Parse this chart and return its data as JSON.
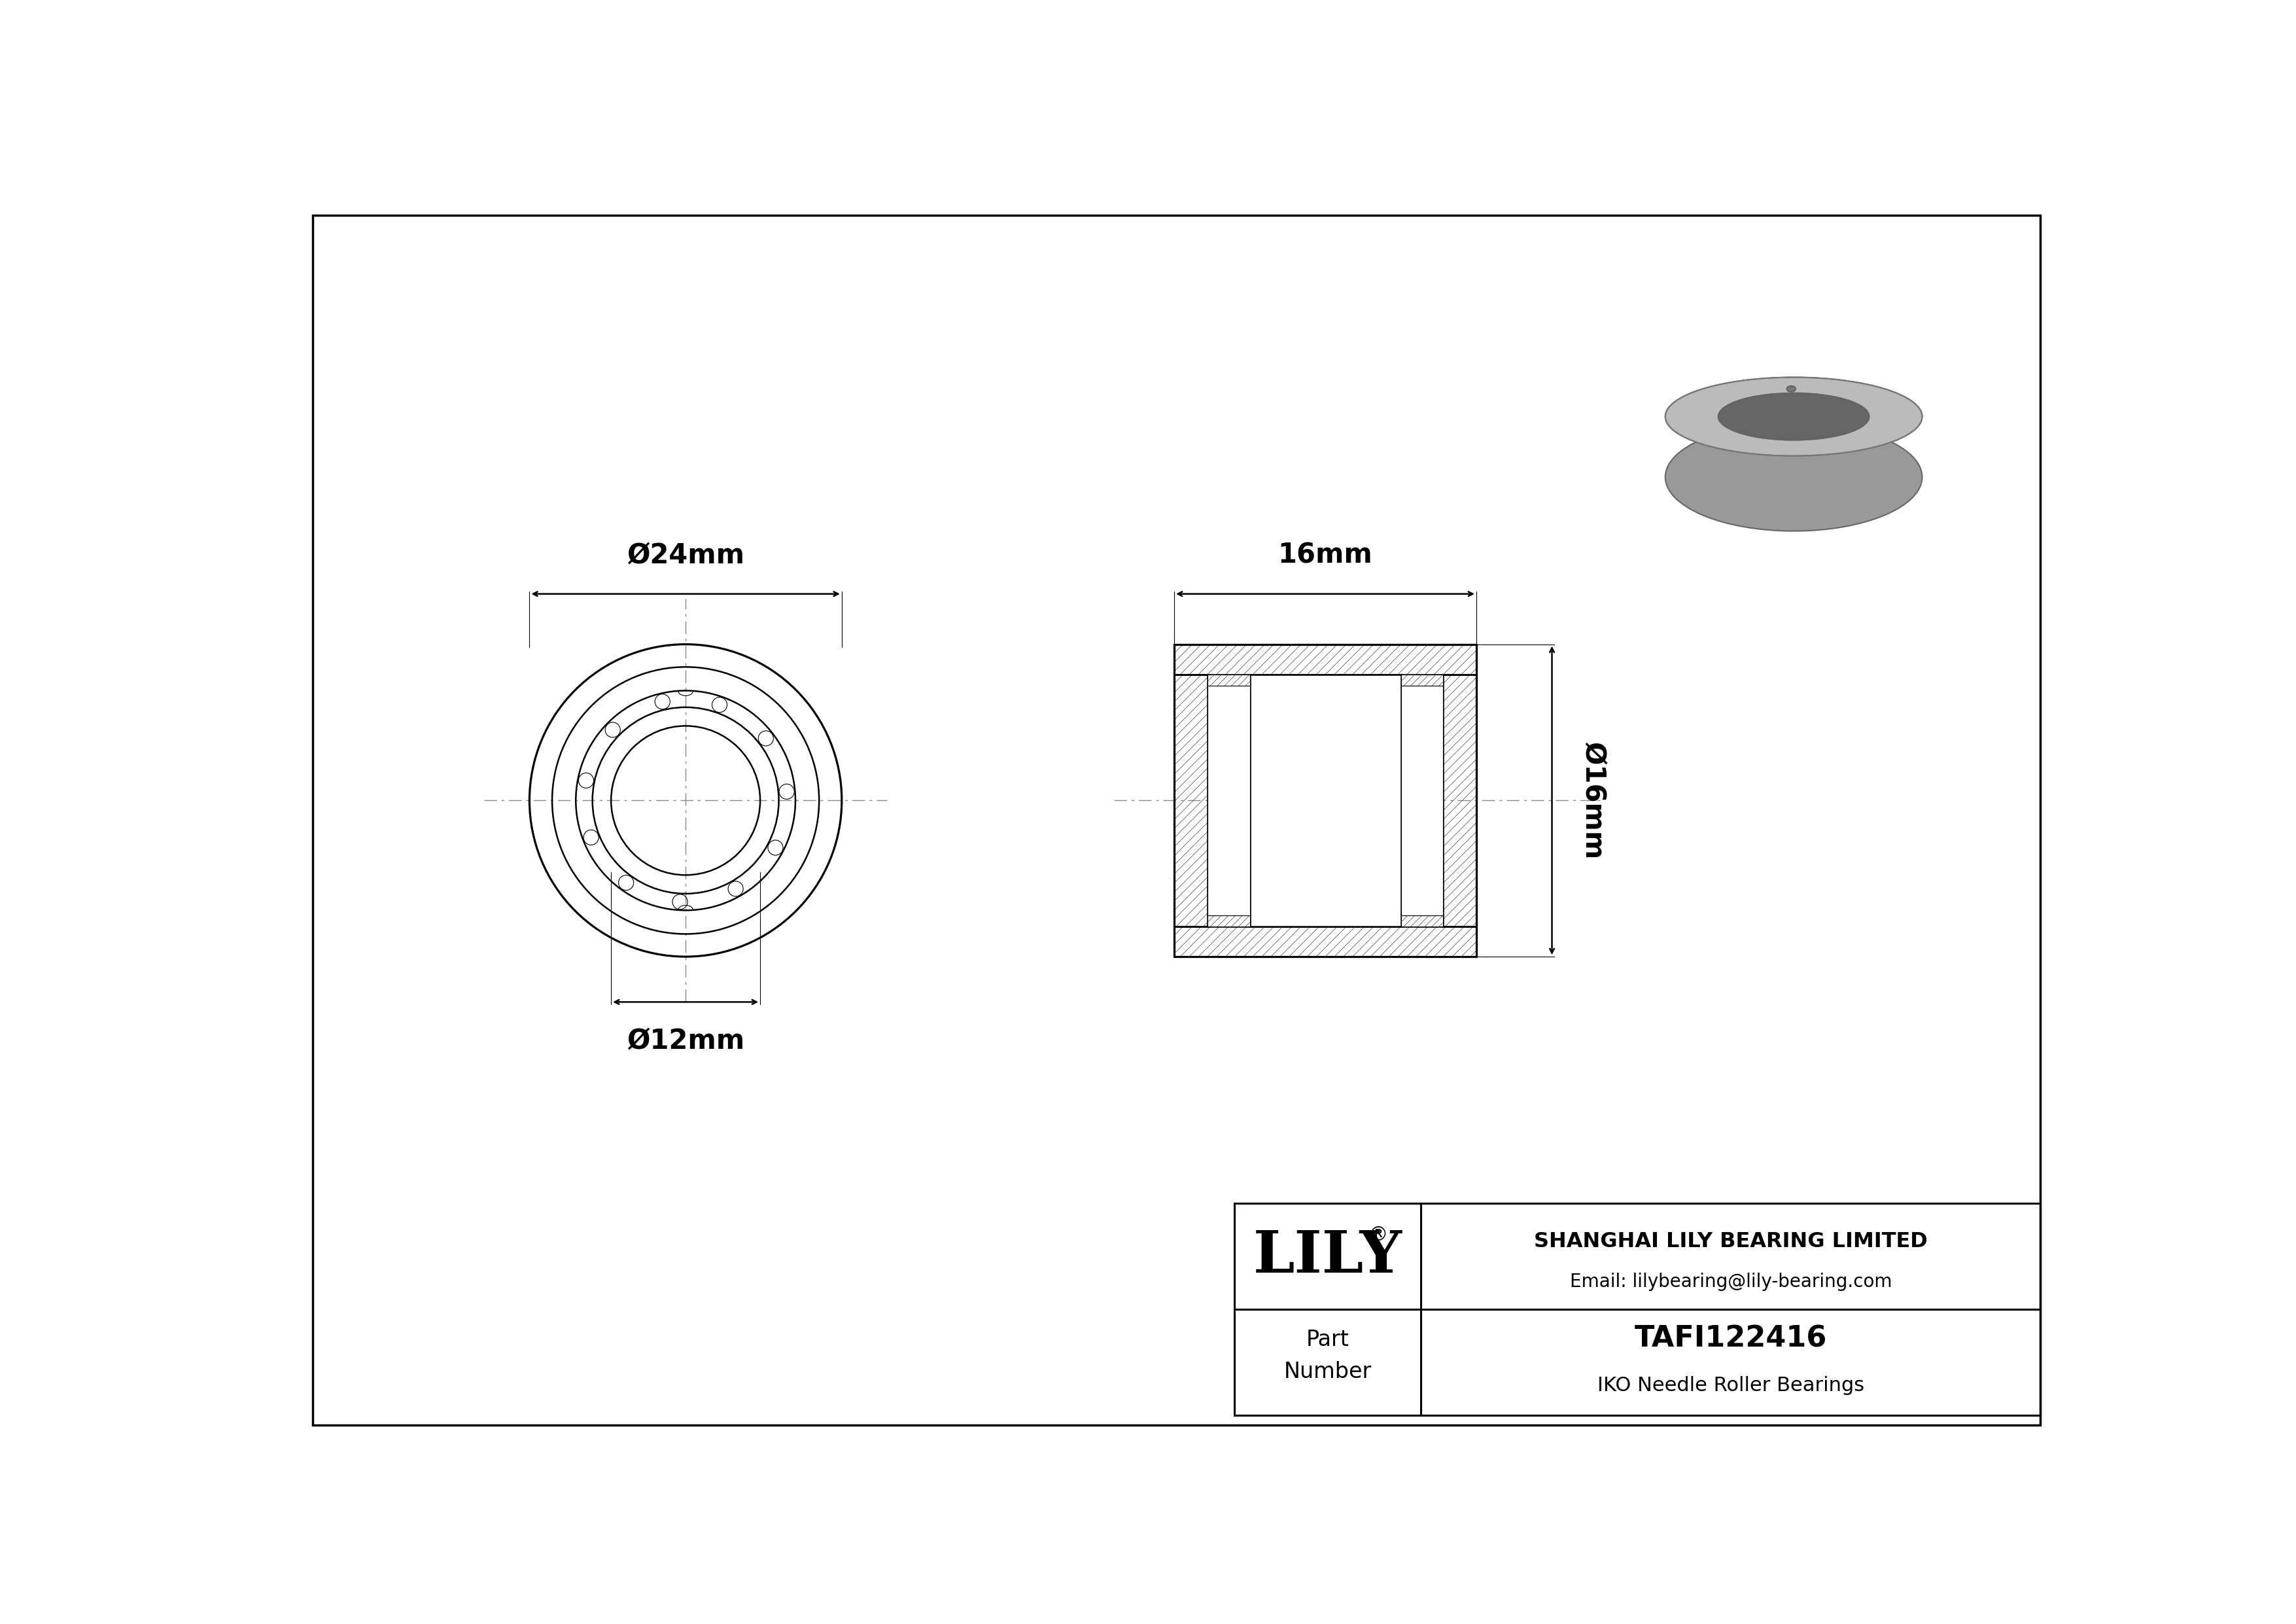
{
  "bg_color": "#ffffff",
  "border_color": "#000000",
  "line_color": "#000000",
  "title_company": "SHANGHAI LILY BEARING LIMITED",
  "title_email": "Email: lilybearing@lily-bearing.com",
  "part_number": "TAFI122416",
  "part_type": "IKO Needle Roller Bearings",
  "part_label": "Part\nNumber",
  "logo_text": "LILY",
  "dim_outer": "Ø24mm",
  "dim_inner": "Ø12mm",
  "dim_width": "16mm",
  "dim_height": "Ø16mm",
  "drawing_lw": 1.8,
  "thin_lw": 0.8,
  "hatch_lw": 0.5,
  "cl_color": "#888888",
  "hatch_color": "#444444"
}
